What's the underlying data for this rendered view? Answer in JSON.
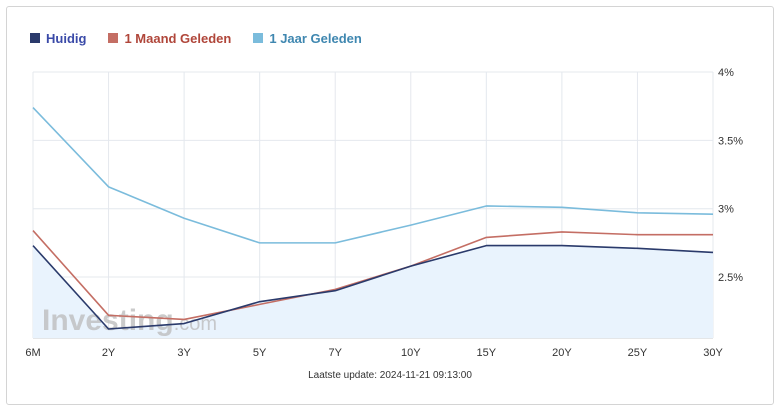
{
  "chart_data": {
    "type": "line",
    "categories": [
      "6M",
      "2Y",
      "3Y",
      "5Y",
      "7Y",
      "10Y",
      "15Y",
      "20Y",
      "25Y",
      "30Y"
    ],
    "series": [
      {
        "name": "Huidig",
        "color": "#2a3a6b",
        "values": [
          2.73,
          2.12,
          2.16,
          2.32,
          2.4,
          2.58,
          2.73,
          2.73,
          2.71,
          2.68
        ]
      },
      {
        "name": "1 Maand Geleden",
        "color": "#c46e64",
        "values": [
          2.84,
          2.22,
          2.19,
          2.3,
          2.41,
          2.58,
          2.79,
          2.83,
          2.81,
          2.81
        ]
      },
      {
        "name": "1 Jaar Geleden",
        "color": "#7bbcdc",
        "values": [
          3.74,
          3.16,
          2.93,
          2.75,
          2.75,
          2.88,
          3.02,
          3.01,
          2.97,
          2.96
        ]
      }
    ],
    "y_ticks": [
      "2.5%",
      "3%",
      "3.5%",
      "4%"
    ],
    "y_tick_values": [
      2.5,
      3.0,
      3.5,
      4.0
    ],
    "ylim": [
      2.05,
      4.0
    ],
    "grid": true,
    "legend_position": "top-left",
    "area_fill_series": "Huidig",
    "area_fill_color": "#e9f3fd"
  },
  "watermark": {
    "text_main": "Investing",
    "text_suffix": ".com"
  },
  "footer": {
    "update_label": "Laatste update: 2024-11-21 09:13:00"
  }
}
